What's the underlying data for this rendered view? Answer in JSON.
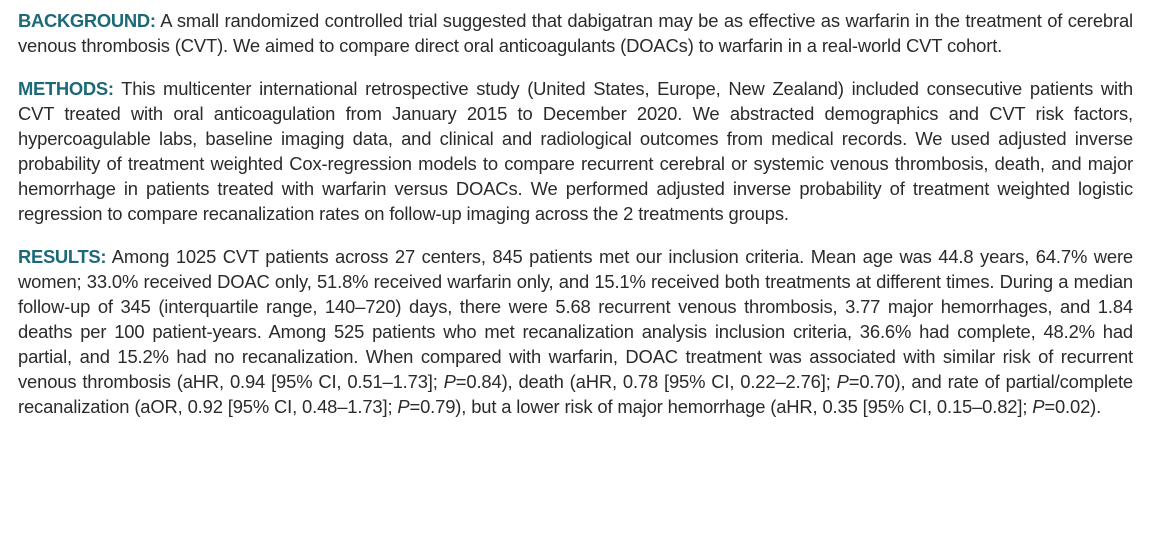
{
  "sections": [
    {
      "label": "BACKGROUND:",
      "segments": [
        {
          "text": " A small randomized controlled trial suggested that dabigatran may be as effective as warfarin in the treatment of cerebral venous thrombosis (CVT). We aimed to compare direct oral anticoagulants (DOACs) to warfarin in a real-world CVT cohort."
        }
      ]
    },
    {
      "label": "METHODS:",
      "segments": [
        {
          "text": " This multicenter international retrospective study (United States, Europe, New Zealand) included consecutive patients with CVT treated with oral anticoagulation from January 2015 to December 2020. We abstracted demographics and CVT risk factors, hypercoagulable labs, baseline imaging data, and clinical and radiological outcomes from medical records. We used adjusted inverse probability of treatment weighted Cox-regression models to compare recurrent cerebral or systemic venous thrombosis, death, and major hemorrhage in patients treated with warfarin versus DOACs. We performed adjusted inverse probability of treatment weighted logistic regression to compare recanalization rates on follow-up imaging across the 2 treatments groups."
        }
      ]
    },
    {
      "label": "RESULTS:",
      "segments": [
        {
          "text": " Among 1025 CVT patients across 27 centers, 845 patients met our inclusion criteria. Mean age was 44.8 years, 64.7% were women; 33.0% received DOAC only, 51.8% received warfarin only, and 15.1% received both treatments at different times. During a median follow-up of 345 (interquartile range, 140–720) days, there were 5.68 recurrent venous thrombosis, 3.77 major hemorrhages, and 1.84 deaths per 100 patient-years. Among 525 patients who met recanalization analysis inclusion criteria, 36.6% had complete, 48.2% had partial, and 15.2% had no recanalization. When compared with warfarin, DOAC treatment was associated with similar risk of recurrent venous thrombosis (aHR, 0.94 [95% CI, 0.51–1.73]; "
        },
        {
          "text": "P",
          "style": "italic"
        },
        {
          "text": "=0.84), death (aHR, 0.78 [95% CI, 0.22–2.76]; "
        },
        {
          "text": "P",
          "style": "italic"
        },
        {
          "text": "=0.70), and rate of partial/complete recanalization (aOR, 0.92 [95% CI, 0.48–1.73]; "
        },
        {
          "text": "P",
          "style": "italic"
        },
        {
          "text": "=0.79), but a lower risk of major hemorrhage (aHR, 0.35 [95% CI, 0.15–0.82]; "
        },
        {
          "text": "P",
          "style": "italic"
        },
        {
          "text": "=0.02)."
        }
      ]
    }
  ]
}
